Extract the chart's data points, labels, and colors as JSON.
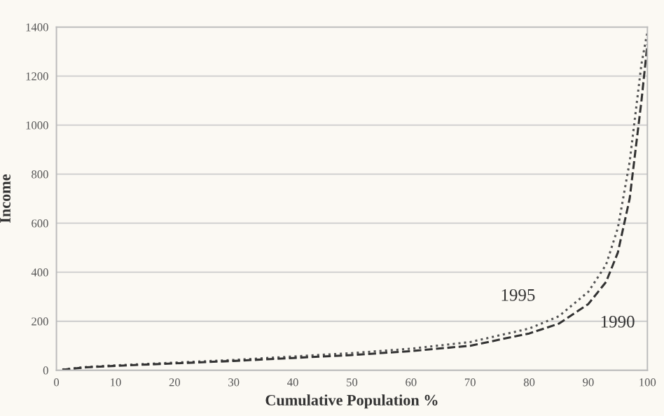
{
  "chart_data": {
    "type": "line",
    "xlabel": "Cumulative Population %",
    "ylabel": "Income",
    "xlim": [
      0,
      100
    ],
    "xticks": [
      0,
      10,
      20,
      30,
      40,
      50,
      60,
      70,
      80,
      90,
      100
    ],
    "ylim": [
      0,
      1400
    ],
    "yticks": [
      0,
      200,
      400,
      600,
      800,
      1000,
      1200,
      1400
    ],
    "grid": "y",
    "legend": false,
    "series": [
      {
        "name": "1995",
        "color": "#555555",
        "line_style": "dotted",
        "x": [
          1,
          5,
          10,
          20,
          30,
          40,
          50,
          60,
          70,
          80,
          85,
          90,
          93,
          95,
          97,
          98,
          99,
          100
        ],
        "values": [
          3,
          13,
          20,
          31,
          42,
          56,
          70,
          88,
          115,
          170,
          220,
          320,
          430,
          580,
          850,
          1050,
          1250,
          1380
        ]
      },
      {
        "name": "1990",
        "color": "#333333",
        "line_style": "dashed",
        "x": [
          1,
          5,
          10,
          20,
          30,
          40,
          50,
          60,
          70,
          80,
          85,
          90,
          93,
          95,
          97,
          98,
          99,
          100
        ],
        "values": [
          2,
          12,
          18,
          28,
          38,
          50,
          62,
          78,
          100,
          150,
          190,
          270,
          360,
          480,
          700,
          900,
          1100,
          1330
        ]
      }
    ]
  }
}
